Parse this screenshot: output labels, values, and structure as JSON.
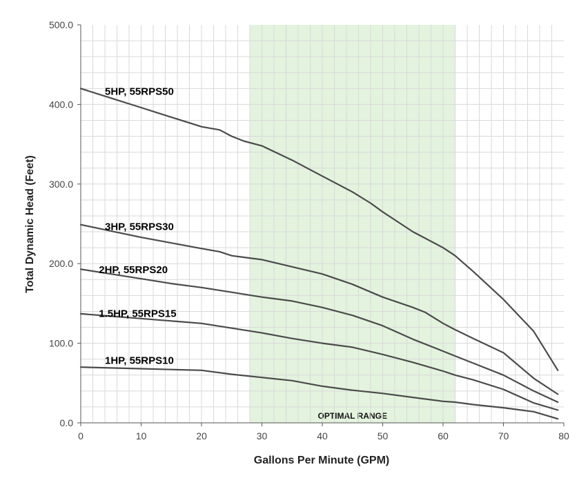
{
  "chart_data": {
    "type": "line",
    "title": "",
    "xlabel": "Gallons Per Minute (GPM)",
    "ylabel": "Total Dynamic Head (Feet)",
    "xlim": [
      0,
      80
    ],
    "ylim": [
      0,
      500
    ],
    "x_ticks": [
      0,
      10,
      20,
      30,
      40,
      50,
      60,
      70,
      80
    ],
    "x_tick_labels": [
      "0",
      "10",
      "20",
      "30",
      "40",
      "50",
      "60",
      "70",
      "80"
    ],
    "y_ticks": [
      0,
      100,
      200,
      300,
      400,
      500
    ],
    "y_tick_labels": [
      "0.0",
      "100.0",
      "200.0",
      "300.0",
      "400.0",
      "500.0"
    ],
    "grid": true,
    "x_minor_step": 2,
    "y_minor_step": 20,
    "line_color": "#4a4a4a",
    "grid_color": "#d9d9d9",
    "band": {
      "label": "OPTIMAL RANGE",
      "x_start": 28,
      "x_end": 62,
      "color": "#e3f3de"
    },
    "series": [
      {
        "name": "5HP, 55RPS50",
        "label_pos": [
          4,
          412
        ],
        "points": [
          [
            0,
            420
          ],
          [
            5,
            408
          ],
          [
            10,
            396
          ],
          [
            15,
            384
          ],
          [
            20,
            372
          ],
          [
            23,
            368
          ],
          [
            25,
            360
          ],
          [
            27,
            354
          ],
          [
            30,
            348
          ],
          [
            35,
            330
          ],
          [
            40,
            310
          ],
          [
            45,
            290
          ],
          [
            48,
            276
          ],
          [
            50,
            265
          ],
          [
            55,
            240
          ],
          [
            60,
            220
          ],
          [
            62,
            210
          ],
          [
            65,
            190
          ],
          [
            70,
            155
          ],
          [
            75,
            115
          ],
          [
            79,
            66
          ]
        ]
      },
      {
        "name": "3HP, 55RPS30",
        "label_pos": [
          4,
          242
        ],
        "points": [
          [
            0,
            249
          ],
          [
            5,
            241
          ],
          [
            10,
            233
          ],
          [
            15,
            226
          ],
          [
            20,
            219
          ],
          [
            23,
            215
          ],
          [
            25,
            210
          ],
          [
            27,
            208
          ],
          [
            30,
            205
          ],
          [
            35,
            196
          ],
          [
            40,
            187
          ],
          [
            45,
            174
          ],
          [
            50,
            158
          ],
          [
            55,
            145
          ],
          [
            57,
            139
          ],
          [
            60,
            125
          ],
          [
            62,
            117
          ],
          [
            65,
            106
          ],
          [
            70,
            88
          ],
          [
            75,
            56
          ],
          [
            79,
            36
          ]
        ]
      },
      {
        "name": "2HP, 55RPS20",
        "label_pos": [
          3,
          188
        ],
        "points": [
          [
            0,
            193
          ],
          [
            5,
            187
          ],
          [
            10,
            181
          ],
          [
            15,
            175
          ],
          [
            20,
            170
          ],
          [
            25,
            164
          ],
          [
            30,
            158
          ],
          [
            35,
            153
          ],
          [
            40,
            145
          ],
          [
            45,
            135
          ],
          [
            50,
            122
          ],
          [
            55,
            105
          ],
          [
            60,
            90
          ],
          [
            62,
            84
          ],
          [
            65,
            75
          ],
          [
            70,
            60
          ],
          [
            75,
            40
          ],
          [
            79,
            26
          ]
        ]
      },
      {
        "name": "1.5HP, 55RPS15",
        "label_pos": [
          3,
          133
        ],
        "points": [
          [
            0,
            137
          ],
          [
            5,
            134
          ],
          [
            10,
            131
          ],
          [
            15,
            128
          ],
          [
            20,
            125
          ],
          [
            25,
            119
          ],
          [
            30,
            113
          ],
          [
            35,
            106
          ],
          [
            40,
            100
          ],
          [
            45,
            95
          ],
          [
            50,
            86
          ],
          [
            55,
            76
          ],
          [
            60,
            65
          ],
          [
            62,
            60
          ],
          [
            65,
            54
          ],
          [
            70,
            42
          ],
          [
            75,
            25
          ],
          [
            79,
            16
          ]
        ]
      },
      {
        "name": "1HP, 55RPS10",
        "label_pos": [
          4,
          74
        ],
        "points": [
          [
            0,
            70
          ],
          [
            5,
            69
          ],
          [
            10,
            68
          ],
          [
            15,
            67
          ],
          [
            20,
            66
          ],
          [
            25,
            61
          ],
          [
            30,
            57
          ],
          [
            35,
            53
          ],
          [
            40,
            46
          ],
          [
            45,
            41
          ],
          [
            50,
            37
          ],
          [
            55,
            32
          ],
          [
            60,
            27
          ],
          [
            62,
            26
          ],
          [
            65,
            23
          ],
          [
            70,
            19
          ],
          [
            75,
            14
          ],
          [
            79,
            5
          ]
        ]
      }
    ]
  }
}
